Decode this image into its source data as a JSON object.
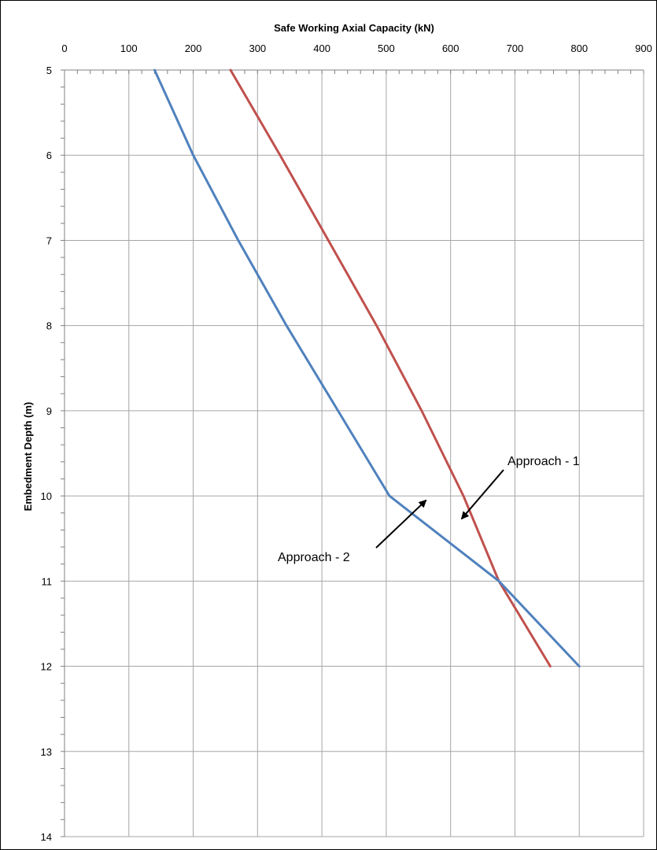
{
  "chart_data": {
    "type": "line",
    "x_axis": {
      "label": "Safe Working Axial Capacity (kN)",
      "position": "top",
      "range": [
        0,
        900
      ],
      "ticks": [
        0,
        100,
        200,
        300,
        400,
        500,
        600,
        700,
        800,
        900
      ]
    },
    "y_axis": {
      "label": "Embedment Depth (m)",
      "range": [
        5,
        14
      ],
      "inverted": true,
      "ticks": [
        5,
        6,
        7,
        8,
        9,
        10,
        11,
        12,
        13,
        14
      ]
    },
    "grid": true,
    "legend": "none",
    "series": [
      {
        "color": "#c0504d",
        "points": [
          [
            258,
            5
          ],
          [
            335,
            6
          ],
          [
            410,
            7
          ],
          [
            485,
            8
          ],
          [
            555,
            9
          ],
          [
            620,
            10
          ],
          [
            675,
            11
          ],
          [
            755,
            12
          ]
        ]
      },
      {
        "color": "#4f81bd",
        "points": [
          [
            140,
            5
          ],
          [
            200,
            6
          ],
          [
            270,
            7
          ],
          [
            345,
            8
          ],
          [
            425,
            9
          ],
          [
            505,
            10
          ],
          [
            590,
            10.5
          ],
          [
            675,
            11
          ],
          [
            800,
            12
          ]
        ]
      }
    ],
    "annotations": [
      {
        "text": "Approach - 1",
        "arrow_to": [
          617,
          10.27
        ]
      },
      {
        "text": "Approach - 2",
        "arrow_to": [
          562,
          10.05
        ]
      }
    ]
  }
}
